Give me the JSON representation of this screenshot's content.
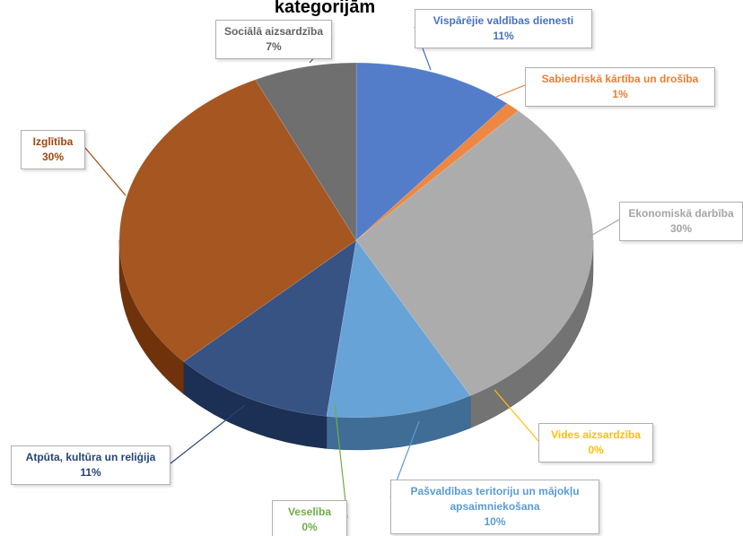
{
  "chart_data": {
    "type": "pie3d",
    "title": "kategorijām",
    "categories": [
      "Vispārējie valdības dienesti",
      "Sabiedriskā kārtība un drošība",
      "Ekonomiskā darbība",
      "Vides aizsardzība",
      "Pašvaldības teritoriju un mājokļu apsaimniekošana",
      "Veselība",
      "Atpūta, kultūra un reliģija",
      "Izglītība",
      "Sociālā aizsardzība"
    ],
    "values": [
      11,
      1,
      30,
      0,
      10,
      0,
      11,
      30,
      7
    ],
    "value_labels": [
      "11%",
      "1%",
      "30%",
      "0%",
      "10%",
      "0%",
      "11%",
      "30%",
      "7%"
    ],
    "colors": [
      "#4472c4",
      "#ed7d31",
      "#a5a5a5",
      "#ffc000",
      "#5b9bd5",
      "#70ad47",
      "#264478",
      "#9e480e",
      "#636363"
    ]
  }
}
